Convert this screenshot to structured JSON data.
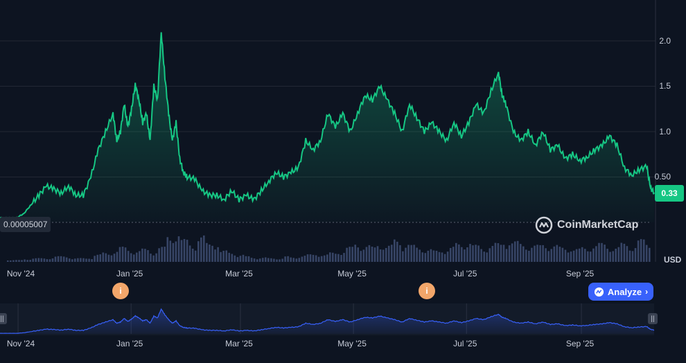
{
  "chart_data": {
    "type": "area",
    "title": "",
    "currency": "USD",
    "y_ticks": [
      "0.50",
      "1.0",
      "1.5",
      "2.0"
    ],
    "y_tick_values": [
      0.5,
      1.0,
      1.5,
      2.0
    ],
    "ylim": [
      0.0,
      2.45
    ],
    "x_labels": [
      "Nov '24",
      "Jan '25",
      "Mar '25",
      "May '25",
      "Jul '25",
      "Sep '25"
    ],
    "x_label_days": [
      0,
      61,
      120,
      181,
      242,
      304
    ],
    "x_day_range": [
      -9,
      344
    ],
    "current_price": "0.33",
    "min_price_label": "0.00005007",
    "series": [
      {
        "name": "Price",
        "points": [
          [
            -9,
            0.05
          ],
          [
            -4,
            0.05
          ],
          [
            0,
            0.05
          ],
          [
            4,
            0.1
          ],
          [
            8,
            0.2
          ],
          [
            12,
            0.3
          ],
          [
            16,
            0.4
          ],
          [
            20,
            0.37
          ],
          [
            24,
            0.32
          ],
          [
            28,
            0.4
          ],
          [
            32,
            0.3
          ],
          [
            36,
            0.3
          ],
          [
            40,
            0.5
          ],
          [
            44,
            0.8
          ],
          [
            48,
            1.0
          ],
          [
            52,
            1.2
          ],
          [
            54,
            0.9
          ],
          [
            56,
            1.0
          ],
          [
            58,
            1.3
          ],
          [
            60,
            1.05
          ],
          [
            62,
            1.25
          ],
          [
            64,
            1.52
          ],
          [
            66,
            1.35
          ],
          [
            68,
            1.1
          ],
          [
            70,
            1.2
          ],
          [
            72,
            0.9
          ],
          [
            74,
            1.5
          ],
          [
            76,
            1.35
          ],
          [
            78,
            2.1
          ],
          [
            80,
            1.6
          ],
          [
            82,
            1.2
          ],
          [
            84,
            0.9
          ],
          [
            86,
            1.1
          ],
          [
            88,
            0.7
          ],
          [
            90,
            0.55
          ],
          [
            92,
            0.5
          ],
          [
            96,
            0.48
          ],
          [
            100,
            0.35
          ],
          [
            104,
            0.3
          ],
          [
            108,
            0.3
          ],
          [
            112,
            0.25
          ],
          [
            116,
            0.35
          ],
          [
            120,
            0.25
          ],
          [
            124,
            0.3
          ],
          [
            128,
            0.25
          ],
          [
            132,
            0.35
          ],
          [
            136,
            0.45
          ],
          [
            140,
            0.55
          ],
          [
            144,
            0.5
          ],
          [
            148,
            0.55
          ],
          [
            152,
            0.6
          ],
          [
            156,
            0.9
          ],
          [
            160,
            0.8
          ],
          [
            164,
            0.9
          ],
          [
            168,
            1.2
          ],
          [
            172,
            1.05
          ],
          [
            176,
            1.2
          ],
          [
            180,
            1.0
          ],
          [
            184,
            1.2
          ],
          [
            188,
            1.4
          ],
          [
            192,
            1.35
          ],
          [
            196,
            1.5
          ],
          [
            200,
            1.35
          ],
          [
            204,
            1.2
          ],
          [
            208,
            1.0
          ],
          [
            212,
            1.3
          ],
          [
            216,
            1.15
          ],
          [
            220,
            1.0
          ],
          [
            224,
            1.1
          ],
          [
            228,
            1.0
          ],
          [
            232,
            0.9
          ],
          [
            236,
            1.1
          ],
          [
            240,
            0.95
          ],
          [
            244,
            1.1
          ],
          [
            248,
            1.3
          ],
          [
            252,
            1.2
          ],
          [
            256,
            1.45
          ],
          [
            260,
            1.65
          ],
          [
            262,
            1.4
          ],
          [
            264,
            1.3
          ],
          [
            268,
            1.0
          ],
          [
            272,
            0.9
          ],
          [
            276,
            1.0
          ],
          [
            280,
            0.85
          ],
          [
            284,
            1.0
          ],
          [
            288,
            0.8
          ],
          [
            292,
            0.85
          ],
          [
            296,
            0.7
          ],
          [
            300,
            0.75
          ],
          [
            304,
            0.68
          ],
          [
            308,
            0.72
          ],
          [
            312,
            0.8
          ],
          [
            316,
            0.85
          ],
          [
            320,
            0.95
          ],
          [
            324,
            0.85
          ],
          [
            328,
            0.6
          ],
          [
            332,
            0.52
          ],
          [
            336,
            0.58
          ],
          [
            340,
            0.62
          ],
          [
            342,
            0.38
          ],
          [
            344,
            0.33
          ]
        ]
      }
    ],
    "volume": [
      0.05,
      0.05,
      0.08,
      0.1,
      0.1,
      0.12,
      0.15,
      0.15,
      0.1,
      0.1,
      0.12,
      0.2,
      0.25,
      0.3,
      0.4,
      0.35,
      0.3,
      0.35,
      0.3,
      0.4,
      0.7,
      0.8,
      0.6,
      0.5,
      0.7,
      0.5,
      0.55,
      0.3,
      0.25,
      0.2,
      0.15,
      0.12,
      0.12,
      0.1,
      0.1,
      0.15,
      0.12,
      0.18,
      0.2,
      0.22,
      0.2,
      0.25,
      0.3,
      0.4,
      0.5,
      0.45,
      0.4,
      0.5,
      0.45,
      0.6,
      0.5,
      0.45,
      0.4,
      0.35,
      0.3,
      0.35,
      0.4,
      0.5,
      0.55,
      0.45,
      0.4,
      0.45,
      0.5,
      0.6,
      0.55,
      0.5,
      0.45,
      0.45,
      0.5,
      0.45,
      0.4,
      0.4,
      0.35,
      0.4,
      0.45,
      0.5,
      0.45,
      0.4,
      0.5,
      0.45,
      0.6,
      0.5
    ]
  },
  "price_badge": "0.33",
  "min_label": "0.00005007",
  "currency_label": "USD",
  "watermark_text": "CoinMarketCap",
  "events": [
    {
      "icon": "i"
    },
    {
      "icon": "i"
    }
  ],
  "analyze_button": {
    "label": "Analyze",
    "chevron": "›"
  },
  "navigator": {
    "x_labels": [
      "Nov '24",
      "Jan '25",
      "Mar '25",
      "May '25",
      "Jul '25",
      "Sep '25"
    ]
  },
  "colors": {
    "line": "#16c784",
    "navigator_line": "#3861fb",
    "bg": "#0d1421",
    "grid": "#222834"
  }
}
